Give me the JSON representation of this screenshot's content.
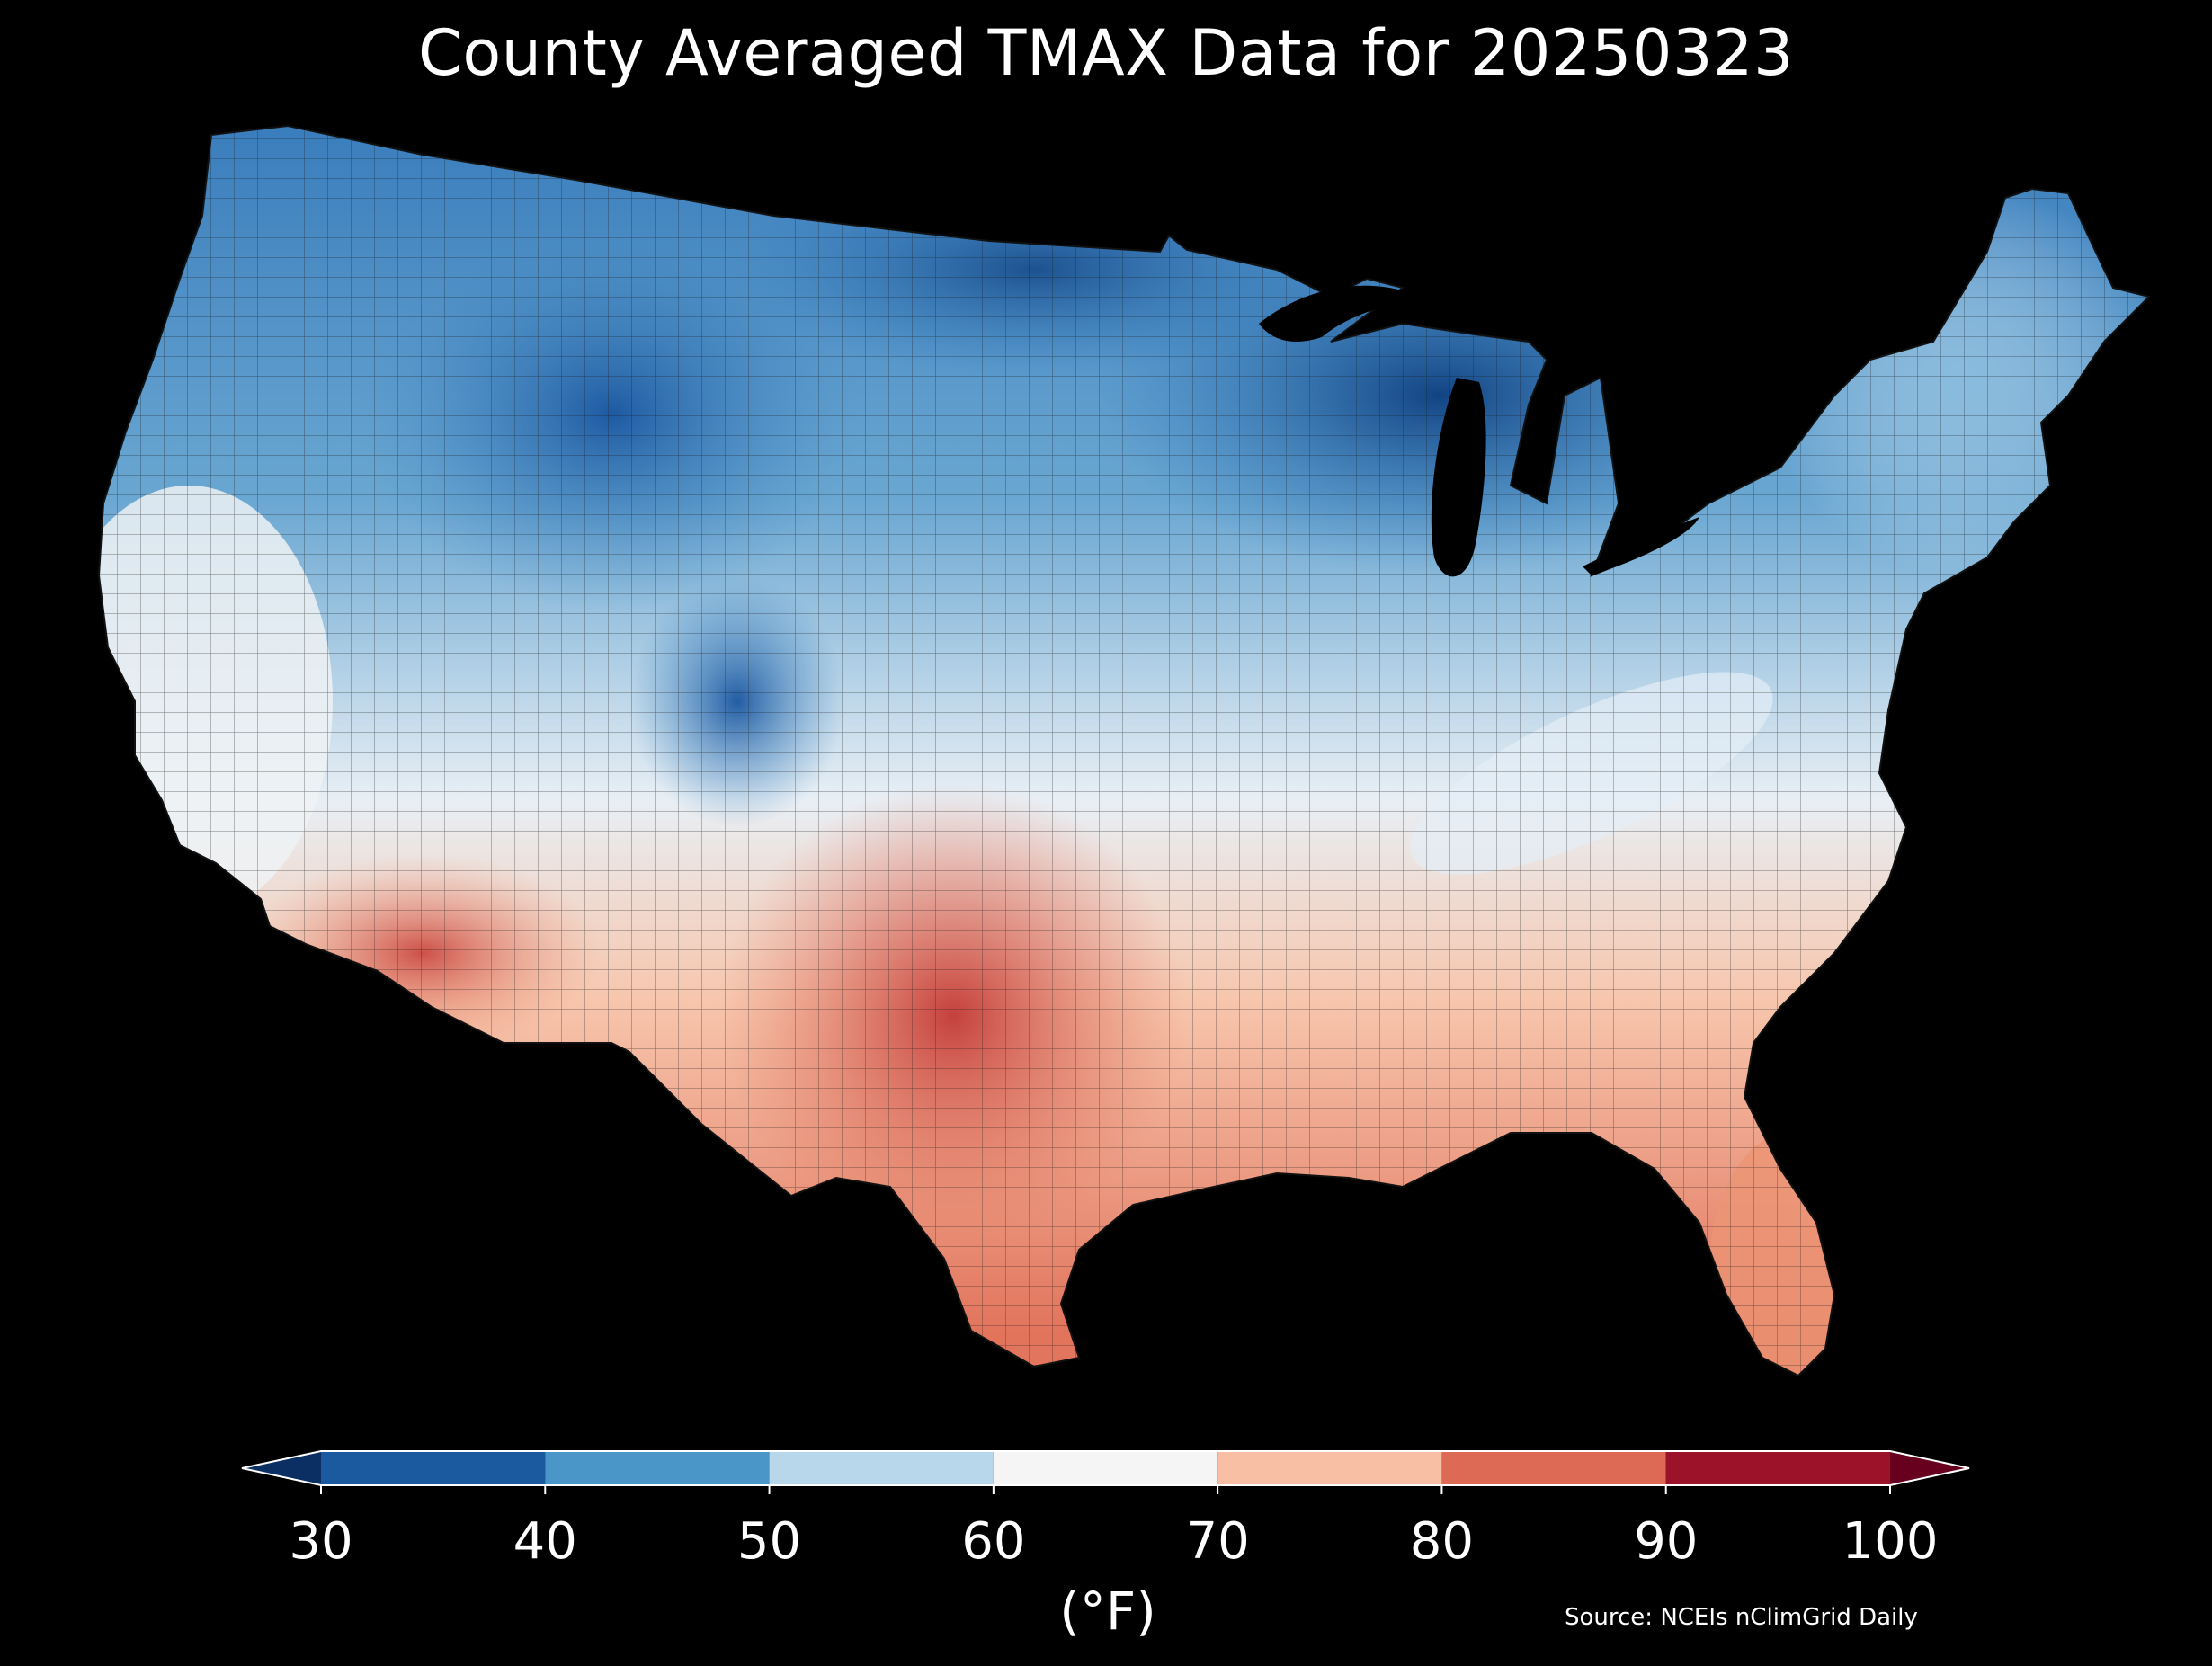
{
  "title": "County Averaged TMAX Data for 20250323",
  "colorbar": {
    "ticks": [
      "30",
      "40",
      "50",
      "60",
      "70",
      "80",
      "90",
      "100"
    ],
    "unit": "(°F)",
    "bins": [
      {
        "from": 30,
        "to": 40,
        "color": "#1b5a9e"
      },
      {
        "from": 40,
        "to": 50,
        "color": "#4a96c8"
      },
      {
        "from": 50,
        "to": 60,
        "color": "#b8d7ea"
      },
      {
        "from": 60,
        "to": 70,
        "color": "#f5f5f5"
      },
      {
        "from": 70,
        "to": 80,
        "color": "#f8bfa4"
      },
      {
        "from": 80,
        "to": 90,
        "color": "#dc6a55"
      },
      {
        "from": 90,
        "to": 100,
        "color": "#9c1228"
      }
    ],
    "under_color": "#0b2f63",
    "over_color": "#67001f"
  },
  "source": "Source: NCEIs nClimGrid Daily",
  "background": "#000000"
}
